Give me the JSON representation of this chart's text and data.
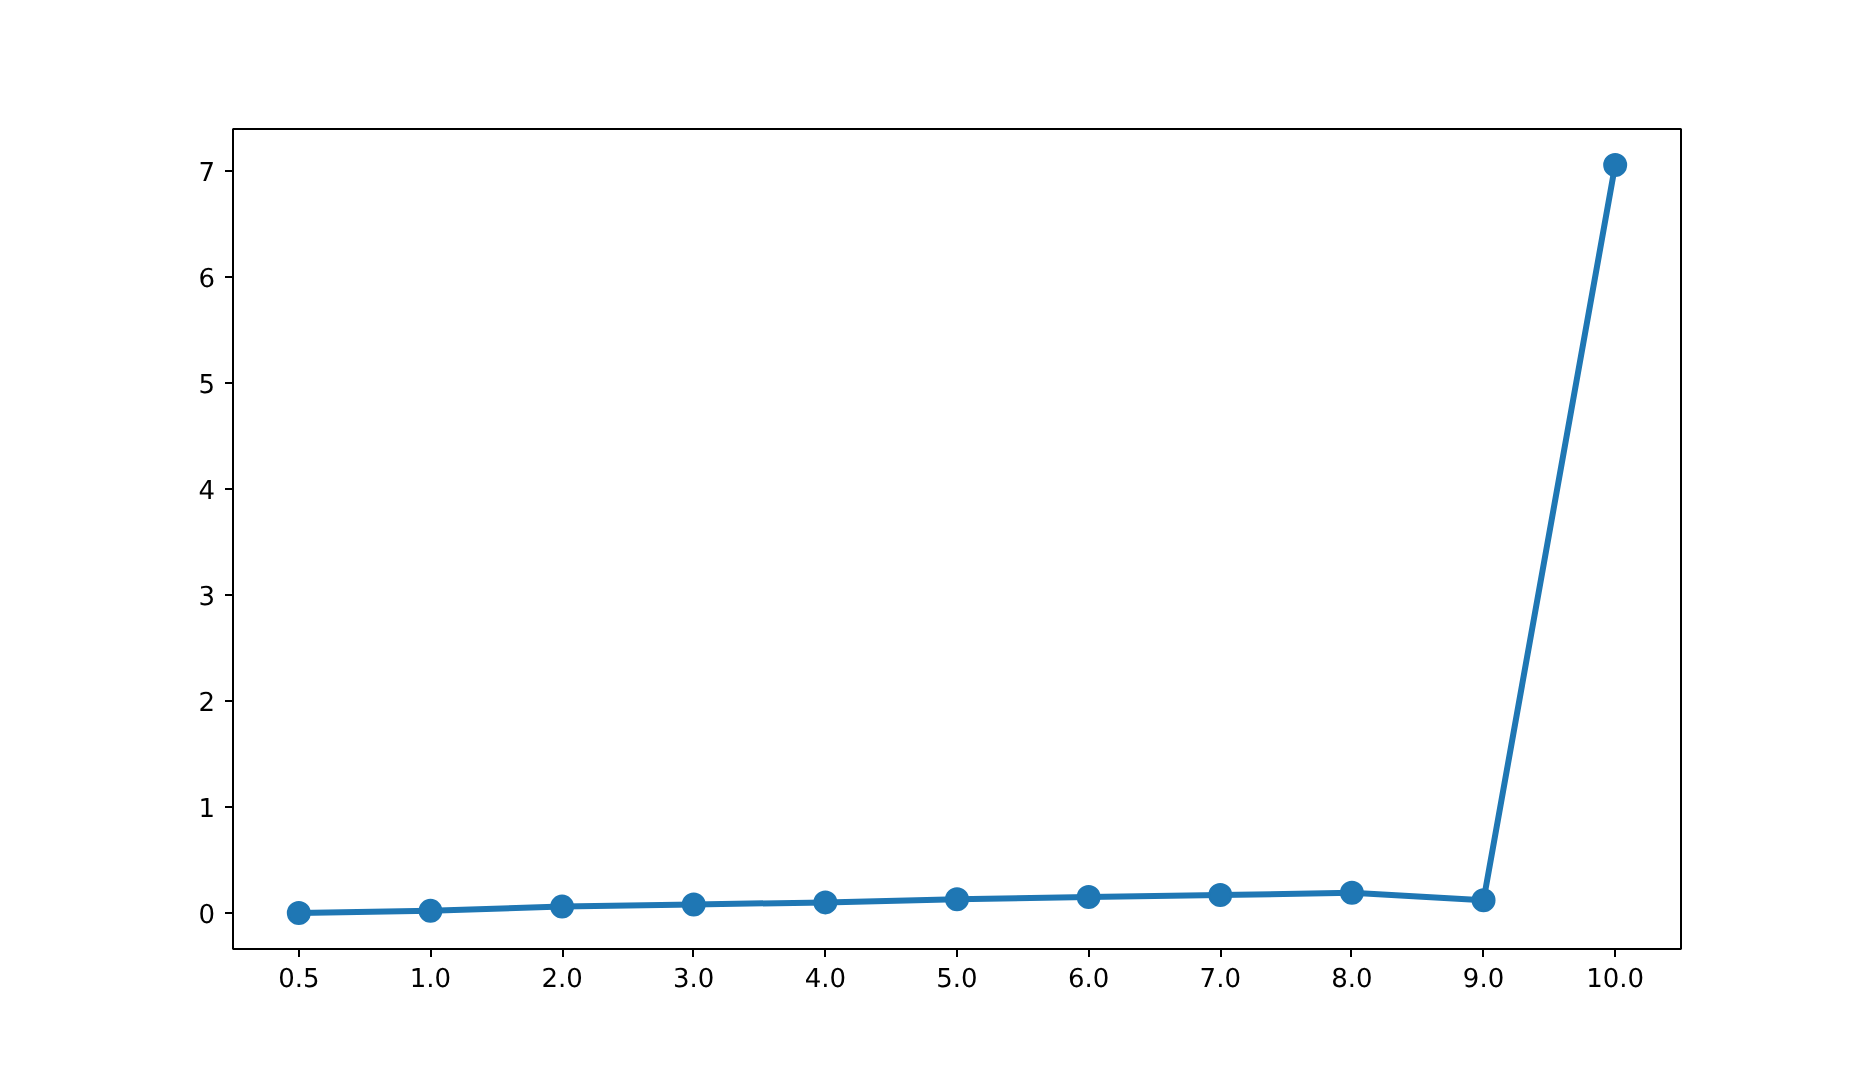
{
  "chart_data": {
    "type": "line",
    "categories": [
      "0.5",
      "1.0",
      "2.0",
      "3.0",
      "4.0",
      "5.0",
      "6.0",
      "7.0",
      "8.0",
      "9.0",
      "10.0"
    ],
    "series": [
      {
        "color": "#1f77b4",
        "values": [
          0.0,
          0.02,
          0.06,
          0.08,
          0.1,
          0.13,
          0.15,
          0.17,
          0.19,
          0.12,
          7.06
        ]
      }
    ],
    "ylim": [
      -0.34,
      7.4
    ],
    "yticks": [
      0,
      1,
      2,
      3,
      4,
      5,
      6,
      7
    ],
    "marker": "circle",
    "grid": false
  }
}
